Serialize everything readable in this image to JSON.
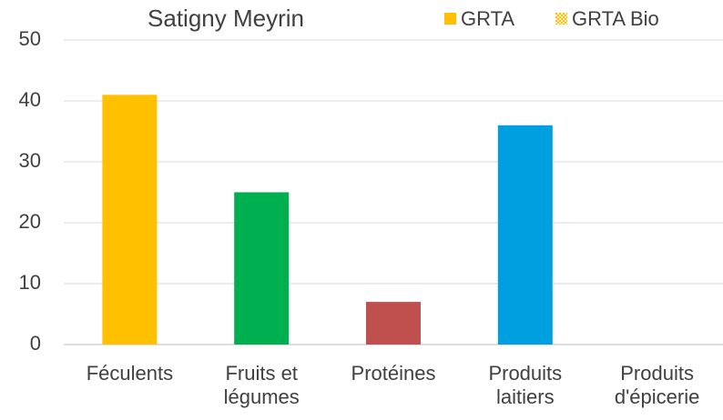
{
  "chart_data": {
    "type": "bar",
    "title": "Satigny Meyrin",
    "categories": [
      "Féculents",
      "Fruits et légumes",
      "Protéines",
      "Produits laitiers",
      "Produits d'épicerie"
    ],
    "series": [
      {
        "name": "GRTA",
        "color": "#FFC000",
        "colors": [
          "#FFC000",
          "#00B050",
          "#C0504D",
          "#00A0E0",
          "#FFC000"
        ],
        "values": [
          41,
          25,
          7,
          36,
          0
        ]
      },
      {
        "name": "GRTA Bio",
        "color": "#FFC000",
        "pattern": "hatched",
        "values": [
          0,
          0,
          0,
          0,
          0
        ]
      }
    ],
    "ylim": [
      0,
      50
    ],
    "yticks": [
      0,
      10,
      20,
      30,
      40,
      50
    ],
    "grid": true,
    "legend": "top-right"
  }
}
